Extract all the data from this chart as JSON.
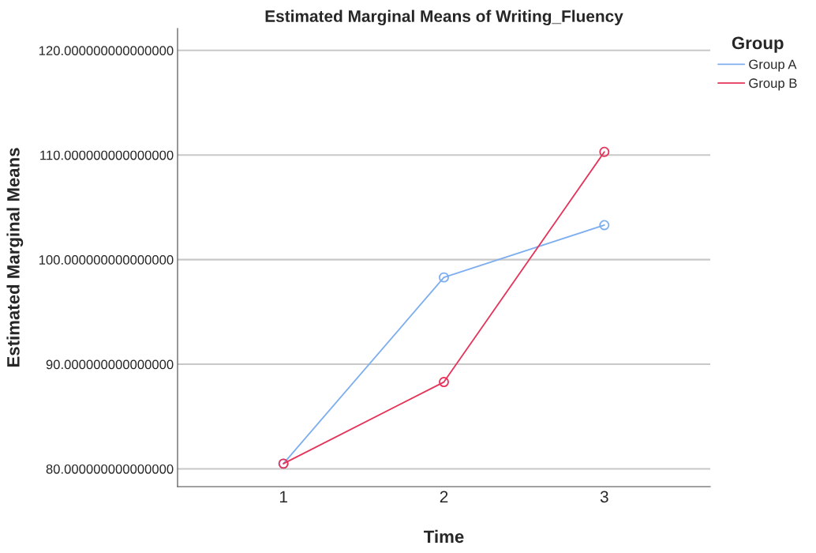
{
  "chart_data": {
    "type": "line",
    "title": "Estimated Marginal Means of Writing_Fluency",
    "xlabel": "Time",
    "ylabel": "Estimated Marginal Means",
    "legend_title": "Group",
    "categories": [
      "1",
      "2",
      "3"
    ],
    "series": [
      {
        "name": "Group A",
        "color": "#7eaef0",
        "values": [
          80.5,
          98.3,
          103.3
        ]
      },
      {
        "name": "Group B",
        "color": "#e5345a",
        "values": [
          80.5,
          88.3,
          110.3
        ]
      }
    ],
    "ylim": [
      78.3,
      122.1
    ],
    "yticks": [
      {
        "value": 80,
        "label": "80.000000000000000"
      },
      {
        "value": 90,
        "label": "90.000000000000000"
      },
      {
        "value": 100,
        "label": "100.000000000000000"
      },
      {
        "value": 110,
        "label": "110.000000000000000"
      },
      {
        "value": 120,
        "label": "120.000000000000000"
      }
    ],
    "grid": "y",
    "legend": "right",
    "marker": "circle",
    "line_style": "solid"
  }
}
